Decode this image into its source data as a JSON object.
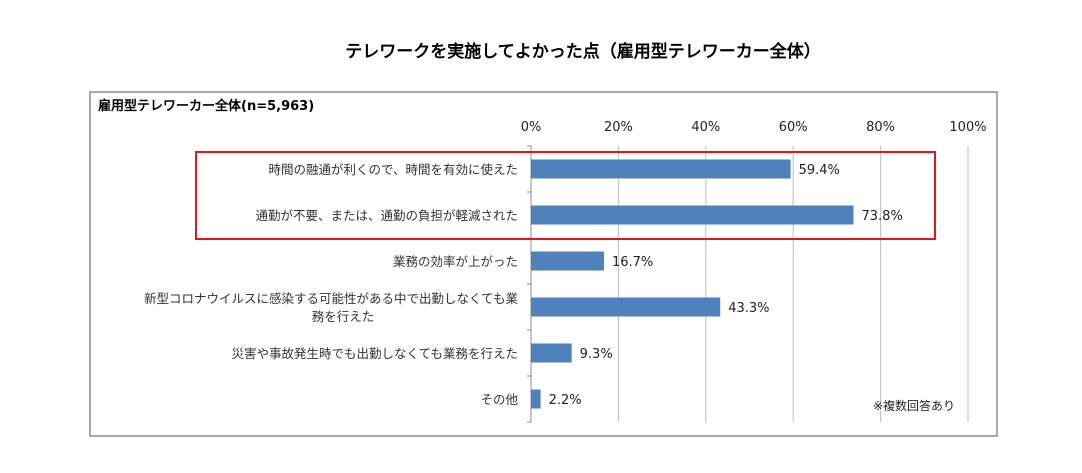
{
  "chart_data": {
    "type": "bar",
    "orientation": "horizontal",
    "title": "テレワークを実施してよかった点（雇用型テレワーカー全体）",
    "subtitle": "雇用型テレワーカー全体(n=5,963)",
    "xlim": [
      0,
      100
    ],
    "x_ticks": [
      "0%",
      "20%",
      "40%",
      "60%",
      "80%",
      "100%"
    ],
    "x_tick_values": [
      0,
      20,
      40,
      60,
      80,
      100
    ],
    "grid": true,
    "categories": [
      [
        "時間の融通が利くので、時間を有効に使えた"
      ],
      [
        "通勤が不要、または、通勤の負担が軽減された"
      ],
      [
        "業務の効率が上がった"
      ],
      [
        "新型コロナウイルスに感染する可能性がある中で出勤しなくても業",
        "務を行えた"
      ],
      [
        "災害や事故発生時でも出勤しなくても業務を行えた"
      ],
      [
        "その他"
      ]
    ],
    "values": [
      59.4,
      73.8,
      16.7,
      43.3,
      9.3,
      2.2
    ],
    "value_labels": [
      "59.4%",
      "73.8%",
      "16.7%",
      "43.3%",
      "9.3%",
      "2.2%"
    ],
    "highlighted_categories": [
      0,
      1
    ],
    "note": "※複数回答あり",
    "colors": {
      "bar": "#4f81bd",
      "highlight": "#e8141b",
      "grid": "#bfbfbf",
      "frame": "#8c8c8c"
    }
  }
}
